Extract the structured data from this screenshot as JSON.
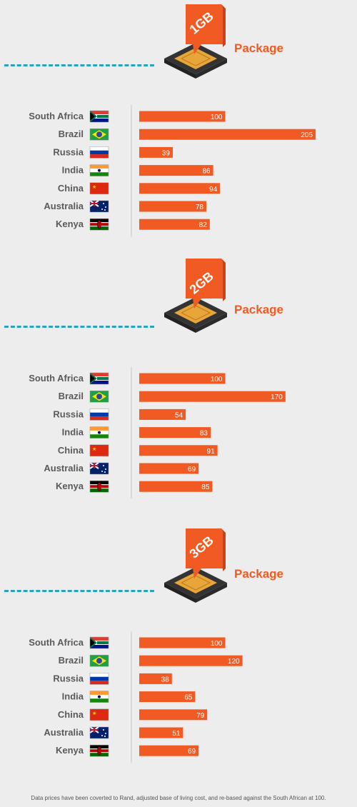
{
  "colors": {
    "bar": "#f15a22",
    "accent": "#f15a22",
    "dash": "#2aa3bd",
    "axis": "#c8c8c8",
    "label": "#5a5a5a"
  },
  "packages": [
    {
      "badge": "1GB",
      "label": "Package"
    },
    {
      "badge": "2GB",
      "label": "Package"
    },
    {
      "badge": "3GB",
      "label": "Package"
    }
  ],
  "chart_data": [
    {
      "type": "bar",
      "orientation": "horizontal",
      "categories": [
        "South Africa",
        "Brazil",
        "Russia",
        "India",
        "China",
        "Australia",
        "Kenya"
      ],
      "values": [
        100,
        205,
        39,
        86,
        94,
        78,
        82
      ]
    },
    {
      "type": "bar",
      "orientation": "horizontal",
      "categories": [
        "South Africa",
        "Brazil",
        "Russia",
        "India",
        "China",
        "Australia",
        "Kenya"
      ],
      "values": [
        100,
        170,
        54,
        83,
        91,
        69,
        85
      ]
    },
    {
      "type": "bar",
      "orientation": "horizontal",
      "categories": [
        "South Africa",
        "Brazil",
        "Russia",
        "India",
        "China",
        "Australia",
        "Kenya"
      ],
      "values": [
        100,
        120,
        38,
        65,
        79,
        51,
        69
      ]
    }
  ],
  "footnote": "Data prices have been coverted to Rand, adjusted base of living cost, and re-based against the South African at 100."
}
